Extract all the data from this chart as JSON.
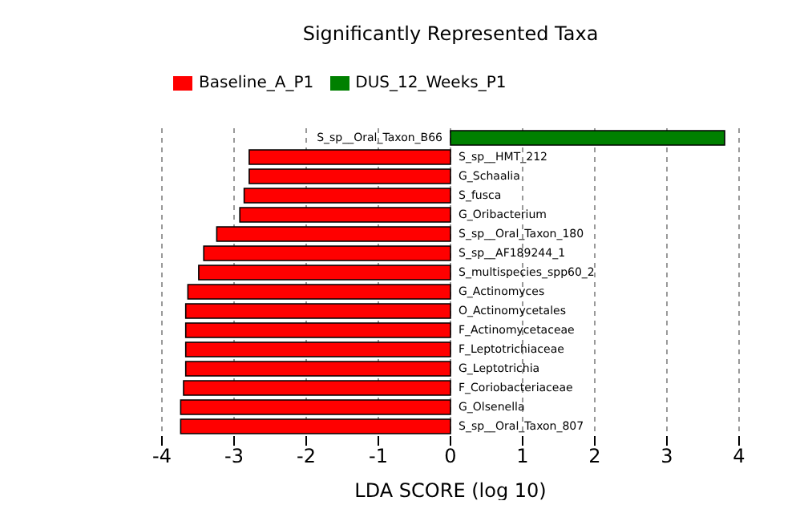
{
  "chart_data": {
    "type": "bar",
    "orientation": "horizontal",
    "stacked": true,
    "title": "Significantly Represented Taxa",
    "xlabel": "LDA SCORE (log 10)",
    "categories": [
      "S_sp__Oral_Taxon_B66",
      "S_sp__HMT_212",
      "G_Schaalia",
      "S_fusca",
      "G_Oribacterium",
      "S_sp__Oral_Taxon_180",
      "S_sp__AF189244_1",
      "S_multispecies_spp60_2",
      "G_Actinomyces",
      "O_Actinomycetales",
      "F_Actinomycetaceae",
      "F_Leptotrichiaceae",
      "G_Leptotrichia",
      "F_Coriobacteriaceae",
      "G_Olsenella",
      "S_sp__Oral_Taxon_807"
    ],
    "series": [
      {
        "name": "Baseline_A_P1",
        "color": "#ff0000",
        "values": [
          null,
          -2.79,
          -2.79,
          -2.86,
          -2.92,
          -3.24,
          -3.42,
          -3.49,
          -3.64,
          -3.67,
          -3.67,
          -3.67,
          -3.67,
          -3.7,
          -3.74,
          -3.74
        ]
      },
      {
        "name": "DUS_12_Weeks_P1",
        "color": "#008000",
        "values": [
          3.8,
          null,
          null,
          null,
          null,
          null,
          null,
          null,
          null,
          null,
          null,
          null,
          null,
          null,
          null,
          null
        ]
      }
    ],
    "xlim": [
      -4,
      4
    ],
    "xticks": [
      -4,
      -3,
      -2,
      -1,
      0,
      1,
      2,
      3,
      4
    ],
    "grid": "x",
    "legend": "top left"
  }
}
